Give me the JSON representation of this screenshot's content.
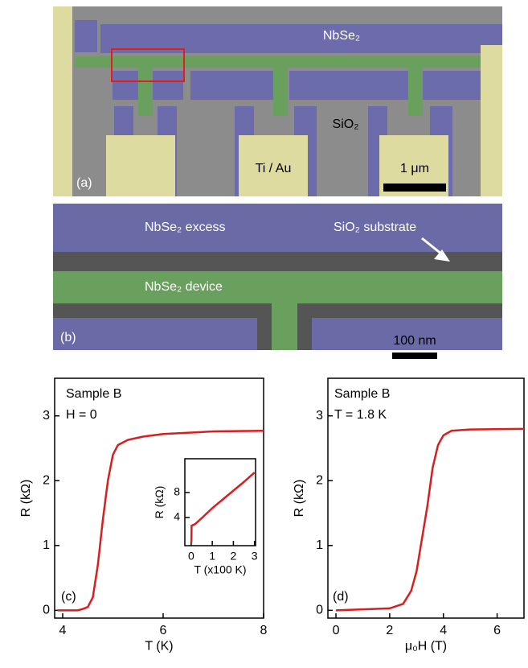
{
  "images": {
    "a": {
      "labels": [
        "NbSe₂",
        "SiO₂",
        "Ti / Au",
        "1 μm",
        "(a)"
      ]
    },
    "b": {
      "labels": [
        "NbSe₂ excess",
        "SiO₂ substrate",
        "NbSe₂ device",
        "100 nm",
        "(b)"
      ]
    }
  },
  "chart_data": [
    {
      "type": "line",
      "annotations": [
        "Sample B",
        "H = 0",
        "(c)"
      ],
      "x_label": "T (K)",
      "y_label": "R (kΩ)",
      "xlim": [
        3.84,
        8
      ],
      "ylim": [
        -0.12,
        3.58
      ],
      "xticks": [
        4,
        6,
        8
      ],
      "yticks": [
        0,
        1,
        2,
        3
      ],
      "color": "#d81e1e",
      "x": [
        3.9,
        4.3,
        4.4,
        4.5,
        4.6,
        4.7,
        4.8,
        4.9,
        5.0,
        5.1,
        5.3,
        5.6,
        6.0,
        7.0,
        8.0
      ],
      "values": [
        0,
        0,
        0.02,
        0.05,
        0.2,
        0.7,
        1.4,
        2.0,
        2.4,
        2.55,
        2.63,
        2.68,
        2.72,
        2.76,
        2.77
      ]
    },
    {
      "type": "line",
      "x_label": "T (x100 K)",
      "y_label": "R (kΩ)",
      "xlim": [
        -0.3,
        3.05
      ],
      "ylim": [
        -0.5,
        13.4
      ],
      "xticks": [
        0,
        1,
        2,
        3
      ],
      "yticks": [
        4,
        8
      ],
      "color": "#d81e1e",
      "x": [
        0.01,
        0.02,
        0.1,
        0.2,
        0.5,
        1.0,
        1.5,
        2.0,
        2.5,
        3.0
      ],
      "values": [
        0,
        2.7,
        2.8,
        3.0,
        3.9,
        5.5,
        6.9,
        8.3,
        9.7,
        11.2
      ]
    },
    {
      "type": "line",
      "annotations": [
        "Sample B",
        "T = 1.8 K",
        "(d)"
      ],
      "x_label": "μ₀H (T)",
      "y_label": "R (kΩ)",
      "xlim": [
        -0.3,
        7
      ],
      "ylim": [
        -0.12,
        3.58
      ],
      "xticks": [
        0,
        2,
        4,
        6
      ],
      "yticks": [
        0,
        1,
        2,
        3
      ],
      "color": "#d81e1e",
      "x": [
        0,
        2.0,
        2.5,
        2.8,
        3.0,
        3.2,
        3.4,
        3.6,
        3.8,
        4.0,
        4.3,
        5.0,
        7.0
      ],
      "values": [
        0,
        0.03,
        0.1,
        0.3,
        0.6,
        1.1,
        1.6,
        2.2,
        2.55,
        2.7,
        2.77,
        2.79,
        2.8
      ]
    }
  ]
}
